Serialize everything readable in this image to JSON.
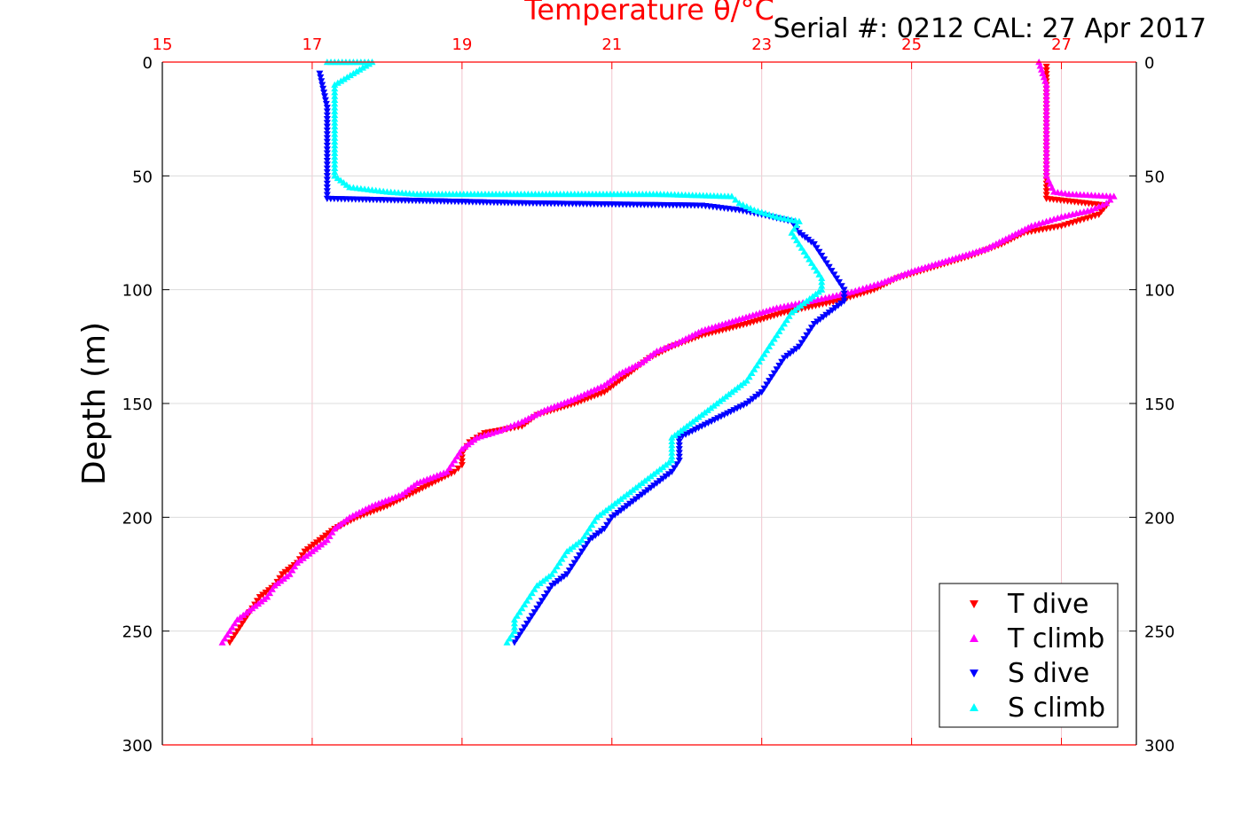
{
  "chart_data": {
    "type": "scatter",
    "title": "Temperature θ/°C",
    "subtitle": "Serial #: 0212  CAL: 27 Apr 2017",
    "ylabel": "Depth (m)",
    "xlim": [
      15,
      28
    ],
    "ylim": [
      0,
      300
    ],
    "y_reversed": true,
    "xticks": [
      "15",
      "17",
      "19",
      "21",
      "23",
      "25",
      "27"
    ],
    "yticks": [
      "0",
      "50",
      "100",
      "150",
      "200",
      "250",
      "300"
    ],
    "grid": true,
    "legend_position": "bottom-right",
    "series": [
      {
        "name": "T dive",
        "color": "#ff0000",
        "marker": "triangle-down",
        "points": [
          [
            26.8,
            2
          ],
          [
            26.8,
            10
          ],
          [
            26.8,
            20
          ],
          [
            26.8,
            30
          ],
          [
            26.8,
            40
          ],
          [
            26.8,
            50
          ],
          [
            26.8,
            55
          ],
          [
            26.8,
            60
          ],
          [
            27.6,
            63
          ],
          [
            27.5,
            67
          ],
          [
            27.2,
            70
          ],
          [
            27.0,
            72
          ],
          [
            26.5,
            75
          ],
          [
            26.2,
            80
          ],
          [
            25.8,
            85
          ],
          [
            25.3,
            90
          ],
          [
            24.8,
            95
          ],
          [
            24.5,
            100
          ],
          [
            24.0,
            105
          ],
          [
            23.3,
            110
          ],
          [
            22.8,
            115
          ],
          [
            22.2,
            120
          ],
          [
            21.8,
            125
          ],
          [
            21.5,
            130
          ],
          [
            21.3,
            135
          ],
          [
            21.1,
            140
          ],
          [
            20.9,
            145
          ],
          [
            20.5,
            150
          ],
          [
            20.0,
            155
          ],
          [
            19.8,
            160
          ],
          [
            19.3,
            163
          ],
          [
            19.1,
            167
          ],
          [
            19.0,
            172
          ],
          [
            19.0,
            177
          ],
          [
            18.9,
            180
          ],
          [
            18.6,
            185
          ],
          [
            18.3,
            190
          ],
          [
            18.0,
            195
          ],
          [
            17.6,
            200
          ],
          [
            17.3,
            205
          ],
          [
            17.1,
            210
          ],
          [
            16.9,
            215
          ],
          [
            16.8,
            220
          ],
          [
            16.6,
            225
          ],
          [
            16.5,
            230
          ],
          [
            16.3,
            235
          ],
          [
            16.2,
            240
          ],
          [
            16.1,
            245
          ],
          [
            16.0,
            250
          ],
          [
            15.9,
            255
          ]
        ]
      },
      {
        "name": "T climb",
        "color": "#ff00ff",
        "marker": "triangle-up",
        "points": [
          [
            26.7,
            0
          ],
          [
            26.8,
            10
          ],
          [
            26.8,
            20
          ],
          [
            26.8,
            30
          ],
          [
            26.8,
            40
          ],
          [
            26.8,
            50
          ],
          [
            26.9,
            57
          ],
          [
            27.1,
            58
          ],
          [
            27.7,
            59
          ],
          [
            27.6,
            62
          ],
          [
            27.4,
            65
          ],
          [
            27.0,
            68
          ],
          [
            26.6,
            72
          ],
          [
            26.3,
            77
          ],
          [
            26.0,
            82
          ],
          [
            25.5,
            87
          ],
          [
            25.0,
            92
          ],
          [
            24.6,
            97
          ],
          [
            24.2,
            101
          ],
          [
            23.8,
            104
          ],
          [
            23.2,
            108
          ],
          [
            22.7,
            113
          ],
          [
            22.2,
            118
          ],
          [
            21.9,
            123
          ],
          [
            21.6,
            127
          ],
          [
            21.4,
            132
          ],
          [
            21.1,
            137
          ],
          [
            20.9,
            142
          ],
          [
            20.5,
            148
          ],
          [
            20.1,
            153
          ],
          [
            19.8,
            158
          ],
          [
            19.5,
            162
          ],
          [
            19.2,
            165
          ],
          [
            19.0,
            170
          ],
          [
            18.9,
            175
          ],
          [
            18.8,
            180
          ],
          [
            18.4,
            185
          ],
          [
            18.2,
            190
          ],
          [
            17.8,
            195
          ],
          [
            17.5,
            200
          ],
          [
            17.3,
            205
          ],
          [
            17.2,
            210
          ],
          [
            17.0,
            215
          ],
          [
            16.8,
            220
          ],
          [
            16.7,
            225
          ],
          [
            16.5,
            230
          ],
          [
            16.4,
            235
          ],
          [
            16.2,
            240
          ],
          [
            16.0,
            245
          ],
          [
            15.9,
            250
          ],
          [
            15.8,
            255
          ]
        ]
      },
      {
        "name": "S dive",
        "color": "#0000ff",
        "marker": "triangle-down",
        "points": [
          [
            17.1,
            5
          ],
          [
            17.2,
            20
          ],
          [
            17.2,
            40
          ],
          [
            17.2,
            55
          ],
          [
            17.2,
            60
          ],
          [
            19.9,
            62
          ],
          [
            22.2,
            63
          ],
          [
            22.7,
            65
          ],
          [
            23.0,
            67
          ],
          [
            23.4,
            70
          ],
          [
            23.5,
            75
          ],
          [
            23.7,
            80
          ],
          [
            23.8,
            85
          ],
          [
            23.9,
            90
          ],
          [
            24.0,
            95
          ],
          [
            24.1,
            100
          ],
          [
            24.1,
            105
          ],
          [
            23.9,
            110
          ],
          [
            23.7,
            115
          ],
          [
            23.6,
            120
          ],
          [
            23.5,
            125
          ],
          [
            23.3,
            130
          ],
          [
            23.2,
            135
          ],
          [
            23.1,
            140
          ],
          [
            23.0,
            145
          ],
          [
            22.8,
            150
          ],
          [
            22.5,
            155
          ],
          [
            22.2,
            160
          ],
          [
            21.9,
            165
          ],
          [
            21.9,
            170
          ],
          [
            21.9,
            175
          ],
          [
            21.8,
            180
          ],
          [
            21.6,
            185
          ],
          [
            21.4,
            190
          ],
          [
            21.2,
            195
          ],
          [
            21.0,
            200
          ],
          [
            20.9,
            205
          ],
          [
            20.7,
            210
          ],
          [
            20.6,
            215
          ],
          [
            20.5,
            220
          ],
          [
            20.4,
            225
          ],
          [
            20.2,
            230
          ],
          [
            20.1,
            235
          ],
          [
            20.0,
            240
          ],
          [
            19.9,
            245
          ],
          [
            19.8,
            250
          ],
          [
            19.7,
            255
          ]
        ]
      },
      {
        "name": "S climb",
        "color": "#00ffff",
        "marker": "triangle-up",
        "points": [
          [
            17.2,
            0
          ],
          [
            17.8,
            0
          ],
          [
            17.3,
            10
          ],
          [
            17.3,
            30
          ],
          [
            17.3,
            50
          ],
          [
            17.5,
            55
          ],
          [
            18.0,
            57
          ],
          [
            18.4,
            58
          ],
          [
            19.5,
            58
          ],
          [
            21.6,
            58
          ],
          [
            22.6,
            59
          ],
          [
            22.7,
            62
          ],
          [
            22.9,
            65
          ],
          [
            23.2,
            68
          ],
          [
            23.5,
            70
          ],
          [
            23.4,
            75
          ],
          [
            23.5,
            80
          ],
          [
            23.6,
            85
          ],
          [
            23.7,
            90
          ],
          [
            23.8,
            95
          ],
          [
            23.8,
            100
          ],
          [
            23.6,
            105
          ],
          [
            23.4,
            110
          ],
          [
            23.3,
            115
          ],
          [
            23.2,
            120
          ],
          [
            23.1,
            125
          ],
          [
            23.0,
            130
          ],
          [
            22.9,
            135
          ],
          [
            22.8,
            140
          ],
          [
            22.6,
            145
          ],
          [
            22.4,
            150
          ],
          [
            22.2,
            155
          ],
          [
            22.0,
            160
          ],
          [
            21.8,
            165
          ],
          [
            21.8,
            170
          ],
          [
            21.8,
            175
          ],
          [
            21.6,
            180
          ],
          [
            21.4,
            185
          ],
          [
            21.2,
            190
          ],
          [
            21.0,
            195
          ],
          [
            20.8,
            200
          ],
          [
            20.7,
            205
          ],
          [
            20.6,
            210
          ],
          [
            20.4,
            215
          ],
          [
            20.3,
            220
          ],
          [
            20.2,
            225
          ],
          [
            20.0,
            230
          ],
          [
            19.9,
            235
          ],
          [
            19.8,
            240
          ],
          [
            19.7,
            245
          ],
          [
            19.7,
            250
          ],
          [
            19.6,
            255
          ]
        ]
      }
    ]
  }
}
